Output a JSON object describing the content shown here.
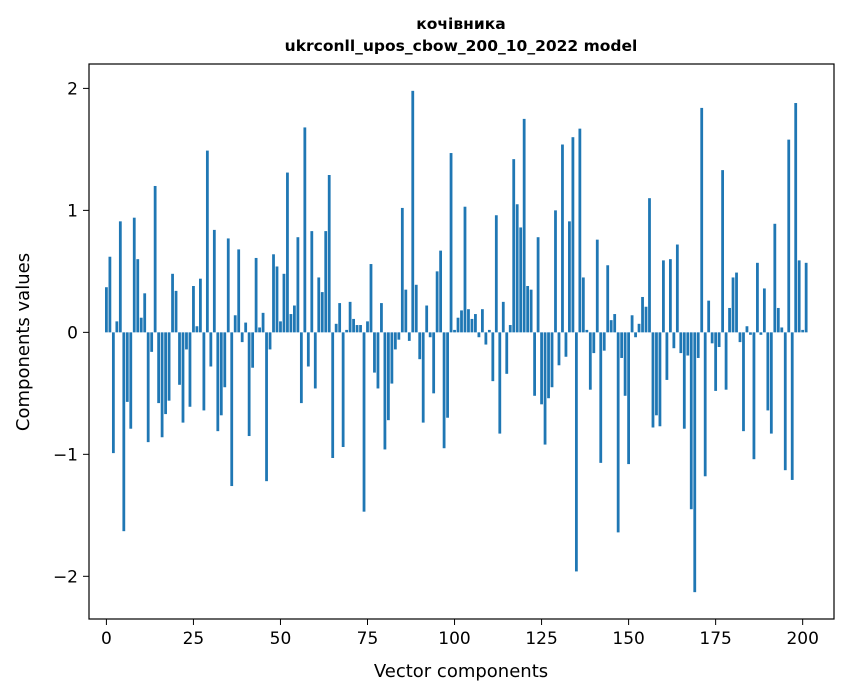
{
  "chart_data": {
    "type": "bar",
    "title_line1": "кочівника",
    "title_line2": "ukrconll_upos_cbow_200_10_2022 model",
    "xlabel": "Vector components",
    "ylabel": "Components values",
    "xlim": [
      -5,
      209
    ],
    "ylim": [
      -2.35,
      2.2
    ],
    "xticks": [
      0,
      25,
      50,
      75,
      100,
      125,
      150,
      175,
      200
    ],
    "xtick_labels": [
      "0",
      "25",
      "50",
      "75",
      "100",
      "125",
      "150",
      "175",
      "200"
    ],
    "yticks": [
      -2,
      -1,
      0,
      1,
      2
    ],
    "ytick_labels": [
      "−2",
      "−1",
      "0",
      "1",
      "2"
    ],
    "bar_color": "#1f77b4",
    "grid": false,
    "values": [
      0.37,
      0.62,
      -0.99,
      0.09,
      0.91,
      -1.63,
      -0.57,
      -0.79,
      0.94,
      0.6,
      0.12,
      0.32,
      -0.9,
      -0.16,
      1.2,
      -0.58,
      -0.86,
      -0.67,
      -0.56,
      0.48,
      0.34,
      -0.43,
      -0.74,
      -0.14,
      -0.61,
      0.38,
      0.05,
      0.44,
      -0.64,
      1.49,
      -0.28,
      0.84,
      -0.81,
      -0.68,
      -0.45,
      0.77,
      -1.26,
      0.14,
      0.68,
      -0.08,
      0.08,
      -0.85,
      -0.29,
      0.61,
      0.04,
      0.16,
      -1.22,
      -0.14,
      0.64,
      0.54,
      0.09,
      0.48,
      1.31,
      0.15,
      0.22,
      0.78,
      -0.58,
      1.68,
      -0.28,
      0.83,
      -0.46,
      0.45,
      0.33,
      0.83,
      1.29,
      -1.03,
      0.07,
      0.24,
      -0.94,
      0.02,
      0.25,
      0.11,
      0.06,
      0.06,
      -1.47,
      0.09,
      0.56,
      -0.33,
      -0.46,
      0.24,
      -0.96,
      -0.72,
      -0.42,
      -0.14,
      -0.06,
      1.02,
      0.35,
      -0.07,
      1.98,
      0.39,
      -0.22,
      -0.74,
      0.22,
      -0.04,
      -0.5,
      0.5,
      0.67,
      -0.95,
      -0.7,
      1.47,
      0.02,
      0.12,
      0.18,
      1.03,
      0.19,
      0.11,
      0.15,
      -0.04,
      0.19,
      -0.1,
      0.02,
      -0.4,
      0.96,
      -0.83,
      0.25,
      -0.34,
      0.06,
      1.42,
      1.05,
      0.86,
      1.75,
      0.38,
      0.35,
      -0.52,
      0.78,
      -0.59,
      -0.92,
      -0.54,
      -0.45,
      1.0,
      -0.27,
      1.54,
      -0.2,
      0.91,
      1.6,
      -1.96,
      1.67,
      0.45,
      0.02,
      -0.47,
      -0.17,
      0.76,
      -1.07,
      -0.15,
      0.55,
      0.1,
      0.15,
      -1.64,
      -0.21,
      -0.52,
      -1.08,
      0.14,
      -0.04,
      0.07,
      0.29,
      0.21,
      1.1,
      -0.78,
      -0.68,
      -0.77,
      0.59,
      -0.39,
      0.6,
      -0.13,
      0.72,
      -0.17,
      -0.79,
      -0.19,
      -1.45,
      -2.13,
      -0.21,
      1.84,
      -1.18,
      0.26,
      -0.09,
      -0.48,
      -0.12,
      1.33,
      -0.47,
      0.2,
      0.45,
      0.49,
      -0.08,
      -0.81,
      0.05,
      -0.02,
      -1.04,
      0.57,
      -0.02,
      0.36,
      -0.64,
      -0.83,
      0.89,
      0.2,
      0.04,
      -1.13,
      1.58,
      -1.21,
      1.88,
      0.59,
      0.02,
      0.57
    ]
  }
}
